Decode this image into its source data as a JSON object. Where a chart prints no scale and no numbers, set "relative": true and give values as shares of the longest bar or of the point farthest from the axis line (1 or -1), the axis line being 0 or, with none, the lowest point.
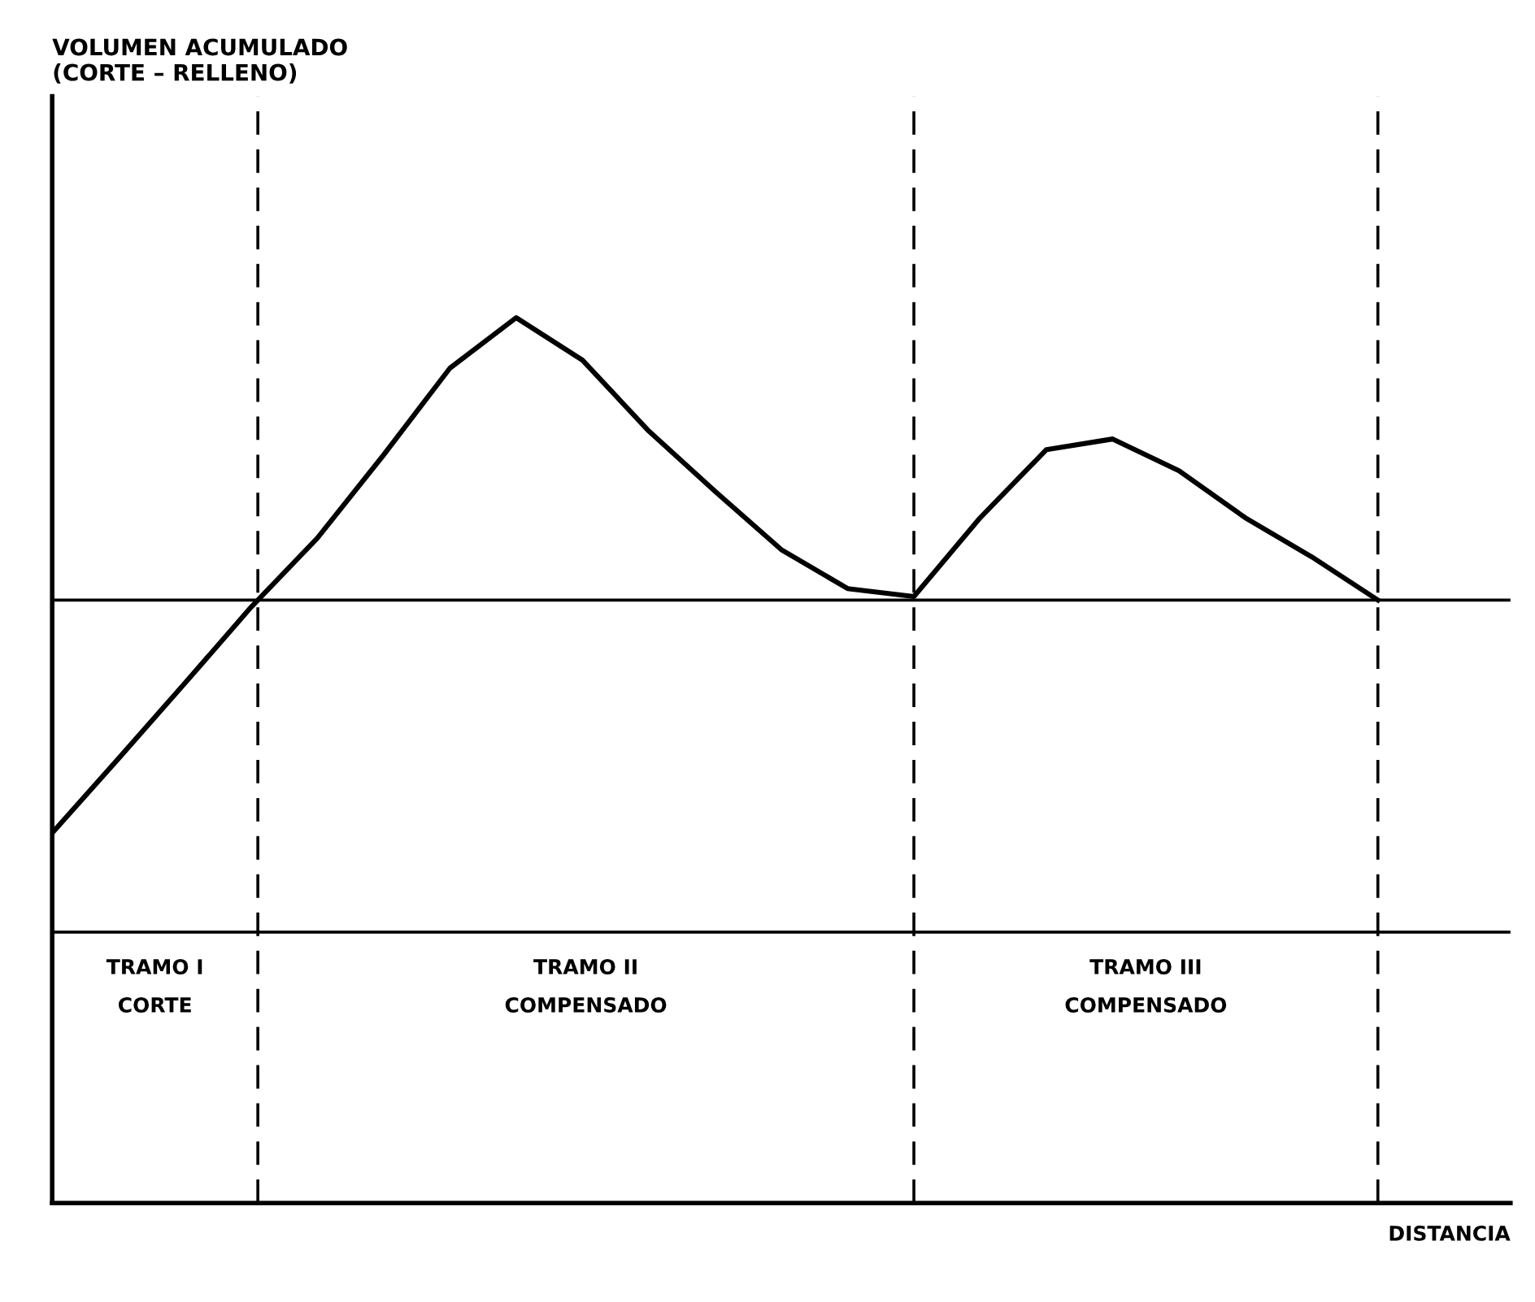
{
  "chart_data": {
    "type": "line",
    "relative": true,
    "xlabel": "DISTANCIA",
    "categories": [
      null,
      null,
      null,
      null,
      null,
      null,
      null,
      null,
      null,
      null,
      null,
      null,
      null,
      null,
      null,
      null,
      null,
      null,
      null,
      null,
      null
    ],
    "series": [
      {
        "color": "#000000",
        "values": [
          0.418,
          0.502,
          0.587,
          0.673,
          0.751,
          0.845,
          0.943,
          1,
          0.952,
          0.872,
          0.804,
          0.738,
          0.694,
          0.685,
          0.774,
          0.851,
          0.863,
          0.827,
          0.774,
          0.73,
          0.681
        ]
      }
    ],
    "ref_lines": [
      {
        "axis": "y",
        "value": 0.681,
        "color": "#000000",
        "line_style": "solid"
      },
      {
        "axis": "y",
        "value": 0.306,
        "color": "#000000",
        "line_style": "solid"
      }
    ],
    "annotations": [
      "VOLUMEN ACUMULADO\n(CORTE – RELLENO)",
      "TRAMO I\nCORTE",
      "TRAMO II\nCOMPENSADO",
      "TRAMO III\nCOMPENSADO"
    ],
    "legend": false,
    "marker": "none",
    "line_style": "solid"
  }
}
